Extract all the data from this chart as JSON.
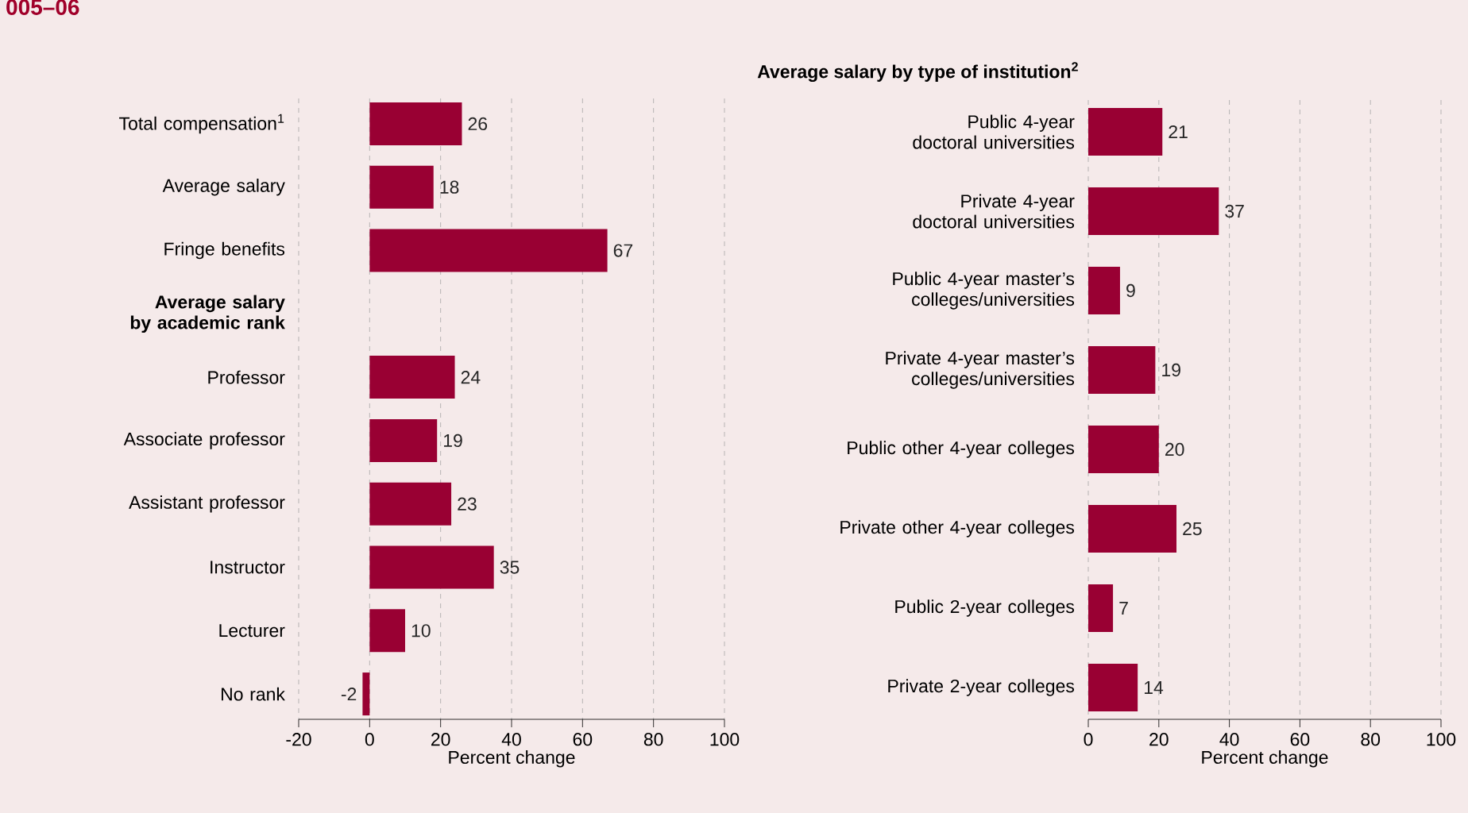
{
  "chart_data": [
    {
      "type": "bar",
      "orientation": "horizontal",
      "title": "005–06",
      "xlabel": "Percent change",
      "categories": [
        "Total compensation$^{1}$",
        "Average salary",
        "Fringe benefits",
        "Average salary by academic rank",
        "Professor",
        "Associate professor",
        "Assistant professor",
        "Instructor",
        "Lecturer",
        "No rank"
      ],
      "values": [
        26,
        18,
        67,
        null,
        24,
        19,
        23,
        35,
        10,
        -2
      ],
      "color": "#990033",
      "xlim": [
        -20,
        100
      ],
      "xticks": [
        -20,
        0,
        20,
        40,
        60,
        80,
        100
      ],
      "grid": "x",
      "data_labels": true
    },
    {
      "type": "bar",
      "orientation": "horizontal",
      "title": "Average salary by type of institution$^{2}$",
      "xlabel": "Percent change",
      "categories": [
        "Public 4-year doctoral universities",
        "Private 4-year doctoral universities",
        "Public 4-year master’s colleges/universities",
        "Private 4-year master’s colleges/universities",
        "Public other 4-year colleges",
        "Private other 4-year colleges",
        "Public 2-year colleges",
        "Private 2-year colleges"
      ],
      "values": [
        21,
        37,
        9,
        19,
        20,
        25,
        7,
        14
      ],
      "color": "#990033",
      "xlim": [
        0,
        100
      ],
      "xticks": [
        0,
        20,
        40,
        60,
        80,
        100
      ],
      "grid": "x",
      "data_labels": true
    }
  ]
}
